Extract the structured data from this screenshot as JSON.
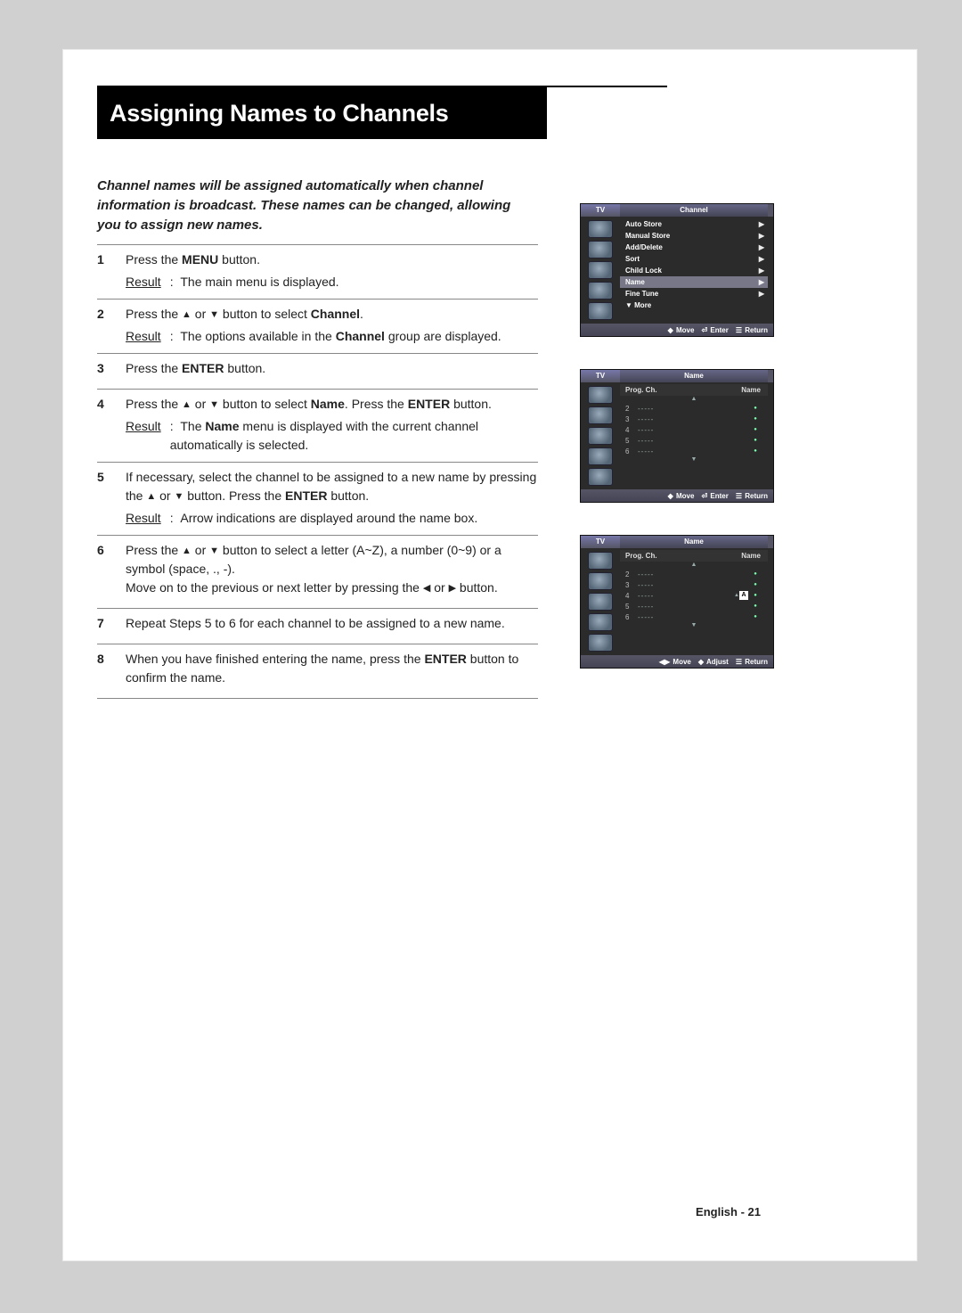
{
  "title": "Assigning Names to Channels",
  "intro": "Channel names will be assigned automatically when channel information is broadcast. These names can be changed, allowing you to assign new names.",
  "footer": "English - 21",
  "glyphs": {
    "up": "▲",
    "down": "▼",
    "left": "◀",
    "right": "▶",
    "updown": "◆",
    "enter": "⏎",
    "return": "☰"
  },
  "steps": [
    {
      "num": "1",
      "line": [
        "Press the ",
        "MENU",
        " button."
      ],
      "result": "The main menu is displayed."
    },
    {
      "num": "2",
      "line": [
        "Press the ",
        "UP",
        " or ",
        "DOWN",
        " button to select ",
        "Channel",
        "."
      ],
      "result": [
        "The options available in the ",
        "Channel",
        " group are displayed."
      ]
    },
    {
      "num": "3",
      "line": [
        "Press the ",
        "ENTER",
        " button."
      ]
    },
    {
      "num": "4",
      "line": [
        "Press the ",
        "UP",
        " or ",
        "DOWN",
        " button to select ",
        "Name",
        ". Press the ",
        "ENTER",
        " button."
      ],
      "result": [
        "The ",
        "Name",
        " menu is displayed with the current channel automatically is selected."
      ]
    },
    {
      "num": "5",
      "line": [
        "If necessary, select the channel to be assigned to a new name by pressing the ",
        "UP",
        " or ",
        "DOWN",
        " button. Press the ",
        "ENTER",
        " button."
      ],
      "result": "Arrow indications are displayed around the name box."
    },
    {
      "num": "6",
      "line": [
        "Press the ",
        "UP",
        " or ",
        "DOWN",
        " button to select a letter (A~Z), a number (0~9) or a symbol (space, ., -).\nMove on to the previous or next letter by pressing the ",
        "LEFT",
        " or ",
        "RIGHT",
        " button."
      ]
    },
    {
      "num": "7",
      "line": [
        "Repeat Steps 5 to 6 for each channel to be assigned to a new name."
      ]
    },
    {
      "num": "8",
      "line": [
        "When you have finished entering the name, press the ",
        "ENTER",
        " button to confirm the name."
      ]
    }
  ],
  "osd1": {
    "tv": "TV",
    "title": "Channel",
    "items": [
      {
        "label": "Auto Store",
        "arrow": true
      },
      {
        "label": "Manual Store",
        "arrow": true
      },
      {
        "label": "Add/Delete",
        "arrow": true
      },
      {
        "label": "Sort",
        "arrow": true
      },
      {
        "label": "Child Lock",
        "arrow": true
      },
      {
        "label": "Name",
        "arrow": true,
        "hi": true
      },
      {
        "label": "Fine Tune",
        "arrow": true
      },
      {
        "label": "▼ More"
      }
    ],
    "foot": [
      "Move",
      "Enter",
      "Return"
    ]
  },
  "osd2": {
    "tv": "TV",
    "title": "Name",
    "header": {
      "left": "Prog.  Ch.",
      "right": "Name"
    },
    "rows": [
      {
        "ch": "2",
        "dashes": "-----"
      },
      {
        "ch": "3",
        "dashes": "-----"
      },
      {
        "ch": "4",
        "dashes": "-----"
      },
      {
        "ch": "5",
        "dashes": "-----"
      },
      {
        "ch": "6",
        "dashes": "-----"
      }
    ],
    "foot": [
      "Move",
      "Enter",
      "Return"
    ]
  },
  "osd3": {
    "tv": "TV",
    "title": "Name",
    "header": {
      "left": "Prog.  Ch.",
      "right": "Name"
    },
    "rows": [
      {
        "ch": "2",
        "dashes": "-----"
      },
      {
        "ch": "3",
        "dashes": "-----"
      },
      {
        "ch": "4",
        "dashes": "-----",
        "edit": "A"
      },
      {
        "ch": "5",
        "dashes": "-----"
      },
      {
        "ch": "6",
        "dashes": "-----"
      }
    ],
    "foot": [
      "Move",
      "Adjust",
      "Return"
    ],
    "footLeft": true
  }
}
